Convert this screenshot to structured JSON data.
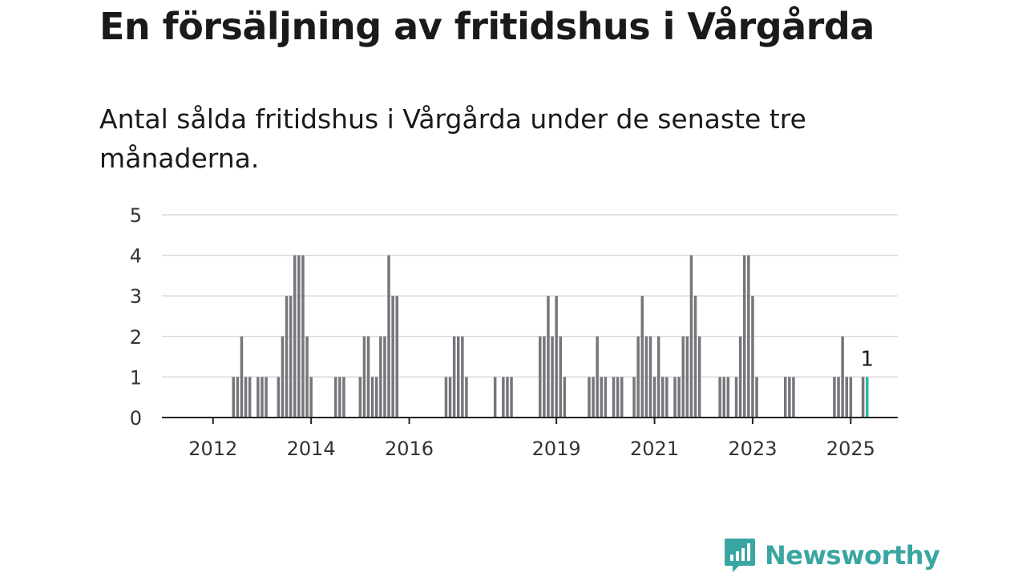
{
  "header": {
    "title": "En försäljning av fritidshus i Vårgårda",
    "subtitle": "Antal sålda fritidshus i Vårgårda under de senaste tre månaderna."
  },
  "brand": {
    "name": "Newsworthy",
    "color": "#3aa6a3"
  },
  "colors": {
    "bar": "#76767c",
    "highlight": "#2bb5ad",
    "grid": "#d9d9d9",
    "axis": "#222222"
  },
  "chart_data": {
    "type": "bar",
    "title": "En försäljning av fritidshus i Vårgårda",
    "subtitle": "Antal sålda fritidshus i Vårgårda under de senaste tre månaderna.",
    "xlabel": "",
    "ylabel": "",
    "ylim": [
      0,
      5
    ],
    "yticks": [
      0,
      1,
      2,
      3,
      4,
      5
    ],
    "xlim": [
      "2011-01",
      "2025-12"
    ],
    "xticks": [
      {
        "label": "2012",
        "month": "2012-01"
      },
      {
        "label": "2014",
        "month": "2014-01"
      },
      {
        "label": "2016",
        "month": "2016-01"
      },
      {
        "label": "2019",
        "month": "2019-01"
      },
      {
        "label": "2021",
        "month": "2021-01"
      },
      {
        "label": "2023",
        "month": "2023-01"
      },
      {
        "label": "2025",
        "month": "2025-01"
      }
    ],
    "grid": true,
    "legend": "none",
    "highlight": {
      "month": "2025-05",
      "value": 1,
      "label": "1"
    },
    "series": [
      {
        "values": [
          {
            "month": "2012-06",
            "value": 1
          },
          {
            "month": "2012-07",
            "value": 1
          },
          {
            "month": "2012-08",
            "value": 2
          },
          {
            "month": "2012-09",
            "value": 1
          },
          {
            "month": "2012-10",
            "value": 1
          },
          {
            "month": "2012-12",
            "value": 1
          },
          {
            "month": "2013-01",
            "value": 1
          },
          {
            "month": "2013-02",
            "value": 1
          },
          {
            "month": "2013-05",
            "value": 1
          },
          {
            "month": "2013-06",
            "value": 2
          },
          {
            "month": "2013-07",
            "value": 3
          },
          {
            "month": "2013-08",
            "value": 3
          },
          {
            "month": "2013-09",
            "value": 4
          },
          {
            "month": "2013-10",
            "value": 4
          },
          {
            "month": "2013-11",
            "value": 4
          },
          {
            "month": "2013-12",
            "value": 2
          },
          {
            "month": "2014-01",
            "value": 1
          },
          {
            "month": "2014-07",
            "value": 1
          },
          {
            "month": "2014-08",
            "value": 1
          },
          {
            "month": "2014-09",
            "value": 1
          },
          {
            "month": "2015-01",
            "value": 1
          },
          {
            "month": "2015-02",
            "value": 2
          },
          {
            "month": "2015-03",
            "value": 2
          },
          {
            "month": "2015-04",
            "value": 1
          },
          {
            "month": "2015-05",
            "value": 1
          },
          {
            "month": "2015-06",
            "value": 2
          },
          {
            "month": "2015-07",
            "value": 2
          },
          {
            "month": "2015-08",
            "value": 4
          },
          {
            "month": "2015-09",
            "value": 3
          },
          {
            "month": "2015-10",
            "value": 3
          },
          {
            "month": "2016-10",
            "value": 1
          },
          {
            "month": "2016-11",
            "value": 1
          },
          {
            "month": "2016-12",
            "value": 2
          },
          {
            "month": "2017-01",
            "value": 2
          },
          {
            "month": "2017-02",
            "value": 2
          },
          {
            "month": "2017-03",
            "value": 1
          },
          {
            "month": "2017-10",
            "value": 1
          },
          {
            "month": "2017-12",
            "value": 1
          },
          {
            "month": "2018-01",
            "value": 1
          },
          {
            "month": "2018-02",
            "value": 1
          },
          {
            "month": "2018-09",
            "value": 2
          },
          {
            "month": "2018-10",
            "value": 2
          },
          {
            "month": "2018-11",
            "value": 3
          },
          {
            "month": "2018-12",
            "value": 2
          },
          {
            "month": "2019-01",
            "value": 3
          },
          {
            "month": "2019-02",
            "value": 2
          },
          {
            "month": "2019-03",
            "value": 1
          },
          {
            "month": "2019-09",
            "value": 1
          },
          {
            "month": "2019-10",
            "value": 1
          },
          {
            "month": "2019-11",
            "value": 2
          },
          {
            "month": "2019-12",
            "value": 1
          },
          {
            "month": "2020-01",
            "value": 1
          },
          {
            "month": "2020-03",
            "value": 1
          },
          {
            "month": "2020-04",
            "value": 1
          },
          {
            "month": "2020-05",
            "value": 1
          },
          {
            "month": "2020-08",
            "value": 1
          },
          {
            "month": "2020-09",
            "value": 2
          },
          {
            "month": "2020-10",
            "value": 3
          },
          {
            "month": "2020-11",
            "value": 2
          },
          {
            "month": "2020-12",
            "value": 2
          },
          {
            "month": "2021-01",
            "value": 1
          },
          {
            "month": "2021-02",
            "value": 2
          },
          {
            "month": "2021-03",
            "value": 1
          },
          {
            "month": "2021-04",
            "value": 1
          },
          {
            "month": "2021-06",
            "value": 1
          },
          {
            "month": "2021-07",
            "value": 1
          },
          {
            "month": "2021-08",
            "value": 2
          },
          {
            "month": "2021-09",
            "value": 2
          },
          {
            "month": "2021-10",
            "value": 4
          },
          {
            "month": "2021-11",
            "value": 3
          },
          {
            "month": "2021-12",
            "value": 2
          },
          {
            "month": "2022-05",
            "value": 1
          },
          {
            "month": "2022-06",
            "value": 1
          },
          {
            "month": "2022-07",
            "value": 1
          },
          {
            "month": "2022-09",
            "value": 1
          },
          {
            "month": "2022-10",
            "value": 2
          },
          {
            "month": "2022-11",
            "value": 4
          },
          {
            "month": "2022-12",
            "value": 4
          },
          {
            "month": "2023-01",
            "value": 3
          },
          {
            "month": "2023-02",
            "value": 1
          },
          {
            "month": "2023-09",
            "value": 1
          },
          {
            "month": "2023-10",
            "value": 1
          },
          {
            "month": "2023-11",
            "value": 1
          },
          {
            "month": "2024-09",
            "value": 1
          },
          {
            "month": "2024-10",
            "value": 1
          },
          {
            "month": "2024-11",
            "value": 2
          },
          {
            "month": "2024-12",
            "value": 1
          },
          {
            "month": "2025-01",
            "value": 1
          },
          {
            "month": "2025-04",
            "value": 1
          },
          {
            "month": "2025-05",
            "value": 1
          }
        ]
      }
    ]
  }
}
